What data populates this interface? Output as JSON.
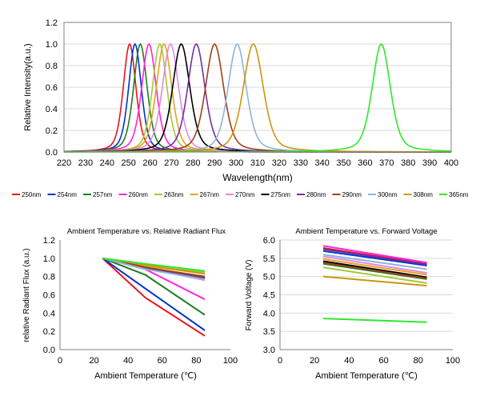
{
  "chart_data": [
    {
      "type": "line",
      "title": "",
      "xlabel": "Wavelength(nm)",
      "ylabel": "Relative Intensity(a.u.)",
      "xlim": [
        220,
        400
      ],
      "ylim": [
        0,
        1.2
      ],
      "xticks": [
        "220",
        "230",
        "240",
        "250",
        "260",
        "270",
        "280",
        "290",
        "300",
        "310",
        "320",
        "330",
        "340",
        "350",
        "360",
        "370",
        "380",
        "390",
        "400"
      ],
      "yticks": [
        "0.0",
        "0.2",
        "0.4",
        "0.6",
        "0.8",
        "1.0",
        "1.2"
      ],
      "grid": "horizontal",
      "legend_position": "bottom",
      "series": [
        {
          "name": "250nm",
          "color": "#e8141b",
          "peak": 250.5,
          "fwhm": 7
        },
        {
          "name": "254nm",
          "color": "#0033cc",
          "peak": 253,
          "fwhm": 7
        },
        {
          "name": "257nm",
          "color": "#1e7d22",
          "peak": 255.5,
          "fwhm": 7.5
        },
        {
          "name": "260nm",
          "color": "#ff22dd",
          "peak": 259.5,
          "fwhm": 8
        },
        {
          "name": "263nm",
          "color": "#a4c93a",
          "peak": 264.5,
          "fwhm": 8
        },
        {
          "name": "267nm",
          "color": "#e8a020",
          "peak": 266.5,
          "fwhm": 8.5
        },
        {
          "name": "270nm",
          "color": "#e08be0",
          "peak": 269.5,
          "fwhm": 9
        },
        {
          "name": "275nm",
          "color": "#000000",
          "peak": 274.5,
          "fwhm": 9.5
        },
        {
          "name": "280nm",
          "color": "#7030a0",
          "peak": 281.5,
          "fwhm": 9.5
        },
        {
          "name": "290nm",
          "color": "#a0401a",
          "peak": 290,
          "fwhm": 10
        },
        {
          "name": "300nm",
          "color": "#8eb4dc",
          "peak": 300.5,
          "fwhm": 10
        },
        {
          "name": "308nm",
          "color": "#c9960c",
          "peak": 308,
          "fwhm": 11
        },
        {
          "name": "365nm",
          "color": "#2ee82e",
          "peak": 367.5,
          "fwhm": 10
        }
      ]
    },
    {
      "type": "line",
      "title": "Ambient Temperature vs. Relative Radiant Flux",
      "xlabel": "Ambient Temperature (℃)",
      "ylabel": "relative Radiant Flux (a.u.)",
      "xlim": [
        0,
        100
      ],
      "ylim": [
        0,
        1.2
      ],
      "xticks": [
        "0",
        "20",
        "40",
        "60",
        "80",
        "100"
      ],
      "yticks": [
        "0.0",
        "0.2",
        "0.4",
        "0.6",
        "0.8",
        "1.0",
        "1.2"
      ],
      "grid": "none",
      "x": [
        25,
        50,
        85
      ],
      "series": [
        {
          "name": "250nm",
          "color": "#e8141b",
          "values": [
            1.0,
            0.57,
            0.15
          ]
        },
        {
          "name": "254nm",
          "color": "#0033cc",
          "values": [
            1.0,
            0.67,
            0.21
          ]
        },
        {
          "name": "257nm",
          "color": "#1e7d22",
          "values": [
            1.0,
            0.82,
            0.38
          ]
        },
        {
          "name": "260nm",
          "color": "#ff22dd",
          "values": [
            1.0,
            0.88,
            0.55
          ]
        },
        {
          "name": "263nm",
          "color": "#a4c93a",
          "values": [
            1.0,
            0.91,
            0.85
          ]
        },
        {
          "name": "267nm",
          "color": "#e8a020",
          "values": [
            1.0,
            0.92,
            0.83
          ]
        },
        {
          "name": "270nm",
          "color": "#e08be0",
          "values": [
            1.0,
            0.89,
            0.76
          ]
        },
        {
          "name": "275nm",
          "color": "#000000",
          "values": [
            1.0,
            0.9,
            0.78
          ]
        },
        {
          "name": "280nm",
          "color": "#7030a0",
          "values": [
            1.0,
            0.89,
            0.79
          ]
        },
        {
          "name": "290nm",
          "color": "#a0401a",
          "values": [
            1.0,
            0.9,
            0.8
          ]
        },
        {
          "name": "300nm",
          "color": "#8eb4dc",
          "values": [
            1.0,
            0.88,
            0.77
          ]
        },
        {
          "name": "308nm",
          "color": "#c9960c",
          "values": [
            1.0,
            0.93,
            0.83
          ]
        },
        {
          "name": "365nm",
          "color": "#2ee82e",
          "values": [
            1.0,
            0.94,
            0.86
          ]
        }
      ]
    },
    {
      "type": "line",
      "title": "Ambient Temperature vs. Forward Voltage",
      "xlabel": "Ambient Temperature (℃)",
      "ylabel": "Forward Voltage (V)",
      "xlim": [
        0,
        100
      ],
      "ylim": [
        3.0,
        6.0
      ],
      "xticks": [
        "0",
        "20",
        "40",
        "60",
        "80",
        "100"
      ],
      "yticks": [
        "3.0",
        "3.5",
        "4.0",
        "4.5",
        "5.0",
        "5.5",
        "6.0"
      ],
      "grid": "horizontal",
      "x": [
        25,
        85
      ],
      "series": [
        {
          "name": "250nm",
          "color": "#e8141b",
          "values": [
            5.78,
            5.35
          ]
        },
        {
          "name": "254nm",
          "color": "#0033cc",
          "values": [
            5.7,
            5.3
          ]
        },
        {
          "name": "257nm",
          "color": "#1e7d22",
          "values": [
            5.35,
            4.93
          ]
        },
        {
          "name": "260nm",
          "color": "#ff22dd",
          "values": [
            5.84,
            5.38
          ]
        },
        {
          "name": "263nm",
          "color": "#a4c93a",
          "values": [
            5.25,
            4.82
          ]
        },
        {
          "name": "267nm",
          "color": "#e8a020",
          "values": [
            5.48,
            5.05
          ]
        },
        {
          "name": "270nm",
          "color": "#e08be0",
          "values": [
            5.55,
            5.1
          ]
        },
        {
          "name": "275nm",
          "color": "#000000",
          "values": [
            5.42,
            4.98
          ]
        },
        {
          "name": "280nm",
          "color": "#7030a0",
          "values": [
            5.75,
            5.33
          ]
        },
        {
          "name": "290nm",
          "color": "#a0401a",
          "values": [
            5.38,
            4.95
          ]
        },
        {
          "name": "300nm",
          "color": "#8eb4dc",
          "values": [
            5.6,
            5.2
          ]
        },
        {
          "name": "308nm",
          "color": "#c9960c",
          "values": [
            5.0,
            4.75
          ]
        },
        {
          "name": "365nm",
          "color": "#2ee82e",
          "values": [
            3.85,
            3.75
          ]
        }
      ]
    }
  ]
}
